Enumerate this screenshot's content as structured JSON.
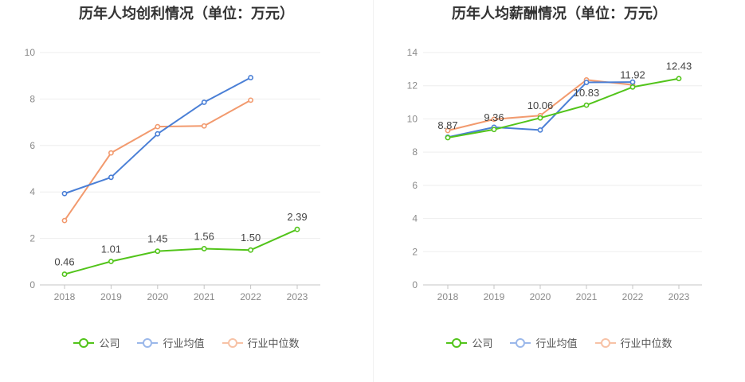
{
  "colors": {
    "company": "#52c41a",
    "industry_avg": "#4a7fd6",
    "industry_median": "#f29a6e",
    "grid": "#eeeeee",
    "axis": "#c4c4c4"
  },
  "legend": [
    "公司",
    "行业均值",
    "行业中位数"
  ],
  "chart_data": [
    {
      "type": "line",
      "title": "历年人均创利情况（单位：万元）",
      "categories": [
        "2018",
        "2019",
        "2020",
        "2021",
        "2022",
        "2023"
      ],
      "ylim": [
        0,
        10
      ],
      "yticks": [
        0,
        2,
        4,
        6,
        8,
        10
      ],
      "grid": true,
      "legend_position": "bottom",
      "series": [
        {
          "name": "公司",
          "values": [
            0.46,
            1.01,
            1.45,
            1.56,
            1.5,
            2.39
          ],
          "labels": [
            "0.46",
            "1.01",
            "1.45",
            "1.56",
            "1.50",
            "2.39"
          ]
        },
        {
          "name": "行业均值",
          "values": [
            3.93,
            4.63,
            6.5,
            7.86,
            8.92,
            null
          ]
        },
        {
          "name": "行业中位数",
          "values": [
            2.77,
            5.68,
            6.81,
            6.84,
            7.95,
            null
          ]
        }
      ]
    },
    {
      "type": "line",
      "title": "历年人均薪酬情况（单位：万元）",
      "categories": [
        "2018",
        "2019",
        "2020",
        "2021",
        "2022",
        "2023"
      ],
      "ylim": [
        0,
        14
      ],
      "yticks": [
        0,
        2,
        4,
        6,
        8,
        10,
        12,
        14
      ],
      "grid": true,
      "legend_position": "bottom",
      "series": [
        {
          "name": "公司",
          "values": [
            8.87,
            9.36,
            10.06,
            10.83,
            11.92,
            12.43
          ],
          "labels": [
            "8.87",
            "9.36",
            "10.06",
            "10.83",
            "11.92",
            "12.43"
          ]
        },
        {
          "name": "行业均值",
          "values": [
            8.9,
            9.5,
            9.33,
            12.2,
            12.22,
            null
          ]
        },
        {
          "name": "行业中位数",
          "values": [
            9.3,
            9.98,
            10.2,
            12.35,
            12.05,
            null
          ]
        }
      ]
    }
  ]
}
